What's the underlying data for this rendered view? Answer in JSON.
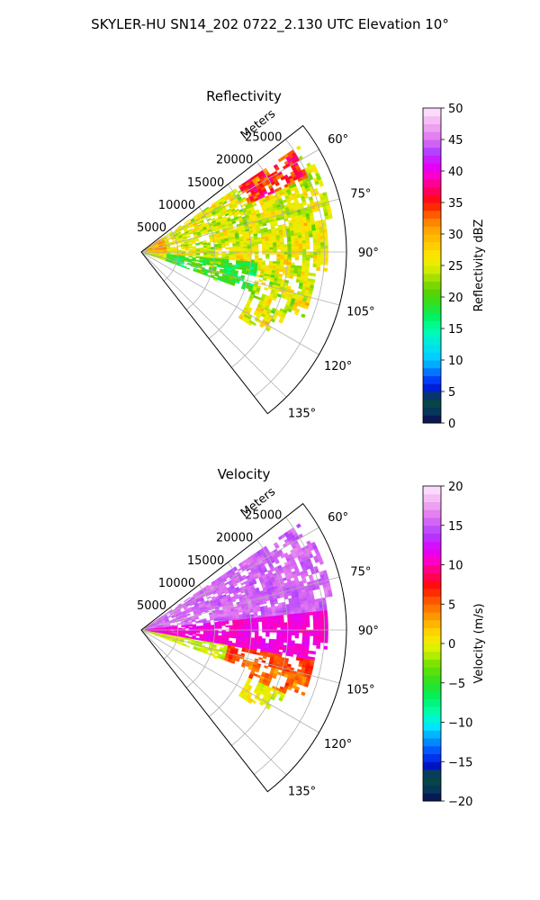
{
  "suptitle": "SKYLER-HU  SN14_202  0722_2.130 UTC Elevation 10°",
  "chart_data": [
    {
      "type": "heatmap",
      "projection": "polar-sector",
      "title": "Reflectivity",
      "radial_axis_label": "Meters",
      "theta_range_deg": [
        52,
        142
      ],
      "range_max_m": 28000,
      "radial_ticks": [
        "5000",
        "10000",
        "15000",
        "20000",
        "25000"
      ],
      "radial_tick_values": [
        5000,
        10000,
        15000,
        20000,
        25000
      ],
      "azimuth_ticks": [
        "60°",
        "75°",
        "90°",
        "105°",
        "120°",
        "135°"
      ],
      "azimuth_tick_values": [
        60,
        75,
        90,
        105,
        120,
        135
      ],
      "grid": true,
      "colorbar": {
        "label": "Reflectivity dBZ",
        "range": [
          0,
          50
        ],
        "ticks": [
          "0",
          "5",
          "10",
          "15",
          "20",
          "25",
          "30",
          "35",
          "40",
          "45",
          "50"
        ],
        "tick_values": [
          0,
          5,
          10,
          15,
          20,
          25,
          30,
          35,
          40,
          45,
          50
        ]
      },
      "field": "reflectivity"
    },
    {
      "type": "heatmap",
      "projection": "polar-sector",
      "title": "Velocity",
      "radial_axis_label": "Meters",
      "theta_range_deg": [
        52,
        142
      ],
      "range_max_m": 28000,
      "radial_ticks": [
        "5000",
        "10000",
        "15000",
        "20000",
        "25000"
      ],
      "radial_tick_values": [
        5000,
        10000,
        15000,
        20000,
        25000
      ],
      "azimuth_ticks": [
        "60°",
        "75°",
        "90°",
        "105°",
        "120°",
        "135°"
      ],
      "azimuth_tick_values": [
        60,
        75,
        90,
        105,
        120,
        135
      ],
      "grid": true,
      "colorbar": {
        "label": "Velocity (m/s)",
        "range": [
          -20,
          20
        ],
        "ticks": [
          "−20",
          "−15",
          "−10",
          "−5",
          "0",
          "5",
          "10",
          "15",
          "20"
        ],
        "tick_values": [
          -20,
          -15,
          -10,
          -5,
          0,
          5,
          10,
          15,
          20
        ]
      },
      "field": "velocity"
    }
  ]
}
